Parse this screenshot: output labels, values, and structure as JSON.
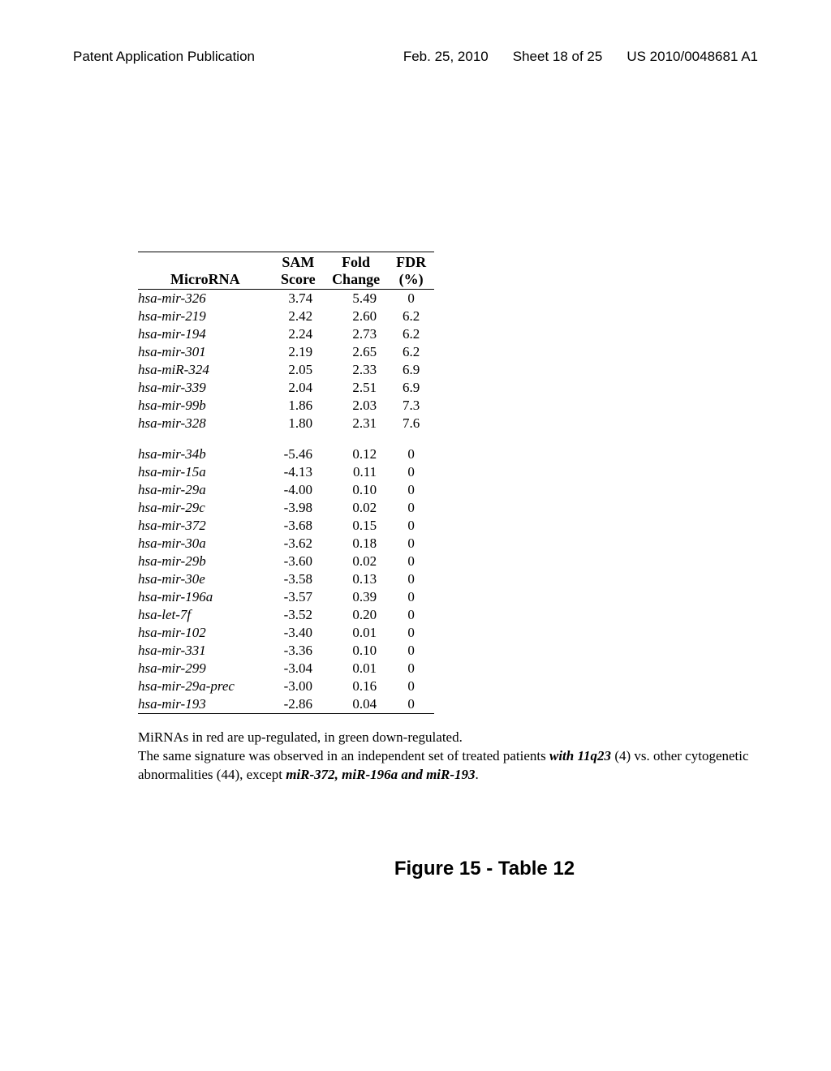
{
  "header": {
    "left": "Patent Application Publication",
    "date": "Feb. 25, 2010",
    "sheet": "Sheet 18 of 25",
    "pubno": "US 2010/0048681 A1"
  },
  "table": {
    "columns": {
      "microrna": "MicroRNA",
      "sam_top": "SAM",
      "sam_bot": "Score",
      "fold_top": "Fold",
      "fold_bot": "Change",
      "fdr_top": "FDR",
      "fdr_bot": "(%)"
    },
    "rows_up": [
      {
        "name": "hsa-mir-326",
        "sam": "3.74",
        "fold": "5.49",
        "fdr": "0"
      },
      {
        "name": "hsa-mir-219",
        "sam": "2.42",
        "fold": "2.60",
        "fdr": "6.2"
      },
      {
        "name": "hsa-mir-194",
        "sam": "2.24",
        "fold": "2.73",
        "fdr": "6.2"
      },
      {
        "name": "hsa-mir-301",
        "sam": "2.19",
        "fold": "2.65",
        "fdr": "6.2"
      },
      {
        "name": "hsa-miR-324",
        "sam": "2.05",
        "fold": "2.33",
        "fdr": "6.9"
      },
      {
        "name": "hsa-mir-339",
        "sam": "2.04",
        "fold": "2.51",
        "fdr": "6.9"
      },
      {
        "name": "hsa-mir-99b",
        "sam": "1.86",
        "fold": "2.03",
        "fdr": "7.3"
      },
      {
        "name": "hsa-mir-328",
        "sam": "1.80",
        "fold": "2.31",
        "fdr": "7.6"
      }
    ],
    "rows_down": [
      {
        "name": "hsa-mir-34b",
        "sam": "-5.46",
        "fold": "0.12",
        "fdr": "0"
      },
      {
        "name": "hsa-mir-15a",
        "sam": "-4.13",
        "fold": "0.11",
        "fdr": "0"
      },
      {
        "name": "hsa-mir-29a",
        "sam": "-4.00",
        "fold": "0.10",
        "fdr": "0"
      },
      {
        "name": "hsa-mir-29c",
        "sam": "-3.98",
        "fold": "0.02",
        "fdr": "0"
      },
      {
        "name": "hsa-mir-372",
        "sam": "-3.68",
        "fold": "0.15",
        "fdr": "0"
      },
      {
        "name": "hsa-mir-30a",
        "sam": "-3.62",
        "fold": "0.18",
        "fdr": "0"
      },
      {
        "name": "hsa-mir-29b",
        "sam": "-3.60",
        "fold": "0.02",
        "fdr": "0"
      },
      {
        "name": "hsa-mir-30e",
        "sam": "-3.58",
        "fold": "0.13",
        "fdr": "0"
      },
      {
        "name": "hsa-mir-196a",
        "sam": "-3.57",
        "fold": "0.39",
        "fdr": "0"
      },
      {
        "name": "hsa-let-7f",
        "sam": "-3.52",
        "fold": "0.20",
        "fdr": "0"
      },
      {
        "name": "hsa-mir-102",
        "sam": "-3.40",
        "fold": "0.01",
        "fdr": "0"
      },
      {
        "name": "hsa-mir-331",
        "sam": "-3.36",
        "fold": "0.10",
        "fdr": "0"
      },
      {
        "name": "hsa-mir-299",
        "sam": "-3.04",
        "fold": "0.01",
        "fdr": "0"
      },
      {
        "name": "hsa-mir-29a-prec",
        "sam": "-3.00",
        "fold": "0.16",
        "fdr": "0"
      },
      {
        "name": "hsa-mir-193",
        "sam": "-2.86",
        "fold": "0.04",
        "fdr": "0"
      }
    ]
  },
  "notes": {
    "line1": "MiRNAs in red are up-regulated, in green down-regulated.",
    "line2_prefix": "The same signature was observed in an independent set of treated patients ",
    "line2_italic1": "with 11q23",
    "line2_mid": " (4) vs. other cytogenetic abnormalities (44), except ",
    "line2_italic2": "miR-372, miR-196a and miR-193",
    "line2_suffix": "."
  },
  "caption": "Figure 15 - Table 12"
}
